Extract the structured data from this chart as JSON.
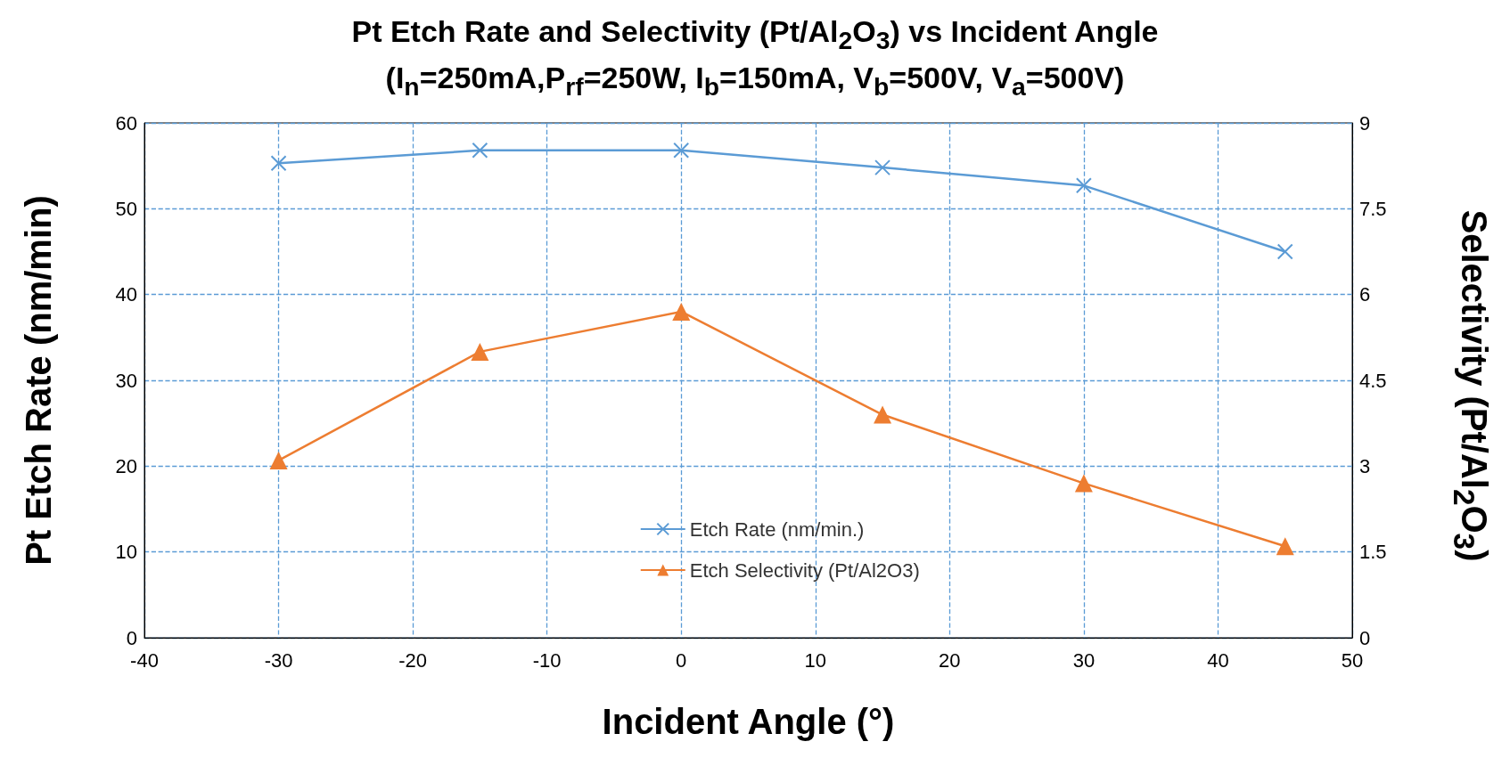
{
  "chart_data": {
    "type": "line",
    "title": "Pt Etch Rate and Selectivity (Pt/Al$_{2}$O$_{3}$) vs Incident Angle",
    "subtitle": "(I$_{n}$=250mA,P$_{rf}$=250W, I$_{b}$=150mA, V$_{b}$=500V, V$_{a}$=500V)",
    "xlabel": "Incident Angle (°)",
    "ylabel": "Pt Etch Rate (nm/min)",
    "y2label": "Selectivity (Pt/Al$_{2}$O$_{3}$)",
    "x": [
      -30,
      -15,
      0,
      15,
      30,
      45
    ],
    "series": [
      {
        "name": "Etch Rate (nm/min.)",
        "color": "#5b9bd5",
        "marker": "cross",
        "values": [
          55.3,
          56.8,
          56.8,
          54.8,
          52.7,
          45.0
        ]
      },
      {
        "name": "Etch Selectivity (Pt/Al2O3)",
        "color": "#ed7d31",
        "marker": "triangle",
        "axis": "y2",
        "values": [
          3.1,
          5.0,
          5.7,
          3.9,
          2.7,
          1.6
        ]
      }
    ],
    "xlim": [
      -40,
      50
    ],
    "xticks": [
      -40,
      -30,
      -20,
      -10,
      0,
      10,
      20,
      30,
      40,
      50
    ],
    "ylim": [
      0,
      60
    ],
    "yticks": [
      0,
      10,
      20,
      30,
      40,
      50,
      60
    ],
    "y2lim": [
      0,
      9
    ],
    "y2ticks": [
      0,
      1.5,
      3,
      4.5,
      6,
      7.5,
      9
    ],
    "grid": true,
    "legend": "bottom",
    "line_style": "solid"
  }
}
